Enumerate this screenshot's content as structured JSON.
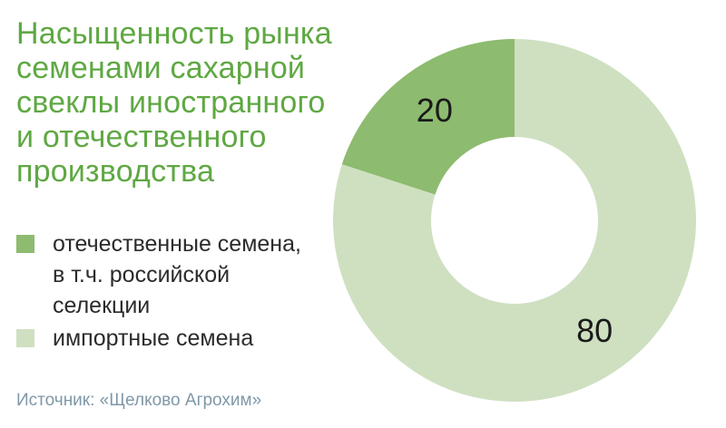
{
  "title_lines": [
    "Насыщенность рынка",
    "семенами сахарной",
    "свеклы иностранного",
    "и отечественного",
    "производства"
  ],
  "legend": [
    {
      "lines": [
        "отечественные семена,",
        "в т.ч. российской",
        "селекции"
      ],
      "color": "#8dbb6f"
    },
    {
      "lines": [
        "импортные семена"
      ],
      "color": "#cfe0c1"
    }
  ],
  "source": "Источник: «Щелково Агрохим»",
  "chart_data": {
    "type": "pie",
    "donut": true,
    "slices": [
      {
        "label": "отечественные семена, в т.ч. российской селекции",
        "value": 20,
        "display": "20",
        "color": "#8dbb6f"
      },
      {
        "label": "импортные семена",
        "value": 80,
        "display": "80",
        "color": "#cfe0c1"
      }
    ],
    "legend_position": "left"
  }
}
